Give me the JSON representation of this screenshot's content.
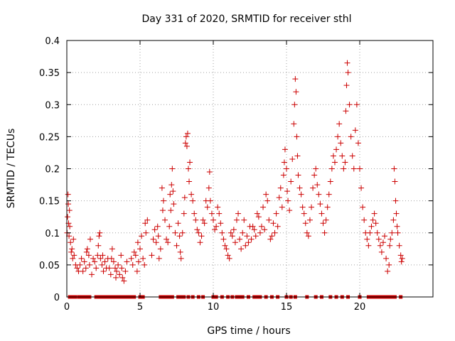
{
  "chart_data": {
    "type": "scatter",
    "title": "Day 331 of 2020, SRMTID for receiver sthl",
    "xlabel": "GPS time / hours",
    "ylabel": "SRMTID / TECUs",
    "xlim": [
      0,
      25
    ],
    "ylim": [
      0,
      0.4
    ],
    "x_ticks": [
      0,
      5,
      10,
      15,
      20
    ],
    "x_tick_labels": [
      "0",
      "5",
      "10",
      "15",
      "20"
    ],
    "y_ticks": [
      0,
      0.05,
      0.1,
      0.15,
      0.2,
      0.25,
      0.3,
      0.35,
      0.4
    ],
    "y_tick_labels": [
      "0",
      "0.05",
      "0.1",
      "0.15",
      "0.2",
      "0.25",
      "0.3",
      "0.35",
      "0.4"
    ],
    "grid": true,
    "marker": "plus",
    "series_color": "#cc0000",
    "zero_marker": "square",
    "zero_x": [
      0.2,
      0.4,
      0.6,
      0.85,
      1.0,
      1.2,
      1.35,
      1.55,
      2.0,
      2.2,
      2.4,
      2.6,
      2.8,
      3.0,
      3.2,
      3.4,
      3.6,
      3.8,
      4.0,
      4.2,
      4.4,
      4.6,
      5.0,
      5.2,
      6.4,
      6.6,
      6.8,
      7.0,
      7.2,
      7.6,
      7.8,
      8.0,
      8.3,
      8.6,
      9.0,
      9.3,
      10.0,
      10.2,
      10.6,
      11.0,
      11.3,
      11.6,
      11.8,
      12.0,
      12.4,
      12.8,
      13.0,
      13.2,
      13.6,
      14.0,
      14.4,
      15.0,
      15.3,
      15.6,
      16.4,
      17.0,
      17.4,
      18.0,
      18.4,
      18.8,
      19.2,
      20.0,
      20.6,
      20.8,
      21.0,
      21.2,
      21.4,
      21.6,
      21.8,
      22.0,
      22.2,
      22.4,
      22.8
    ],
    "points": [
      [
        0.02,
        0.1
      ],
      [
        0.05,
        0.125
      ],
      [
        0.08,
        0.16
      ],
      [
        0.1,
        0.145
      ],
      [
        0.12,
        0.115
      ],
      [
        0.15,
        0.095
      ],
      [
        0.18,
        0.135
      ],
      [
        0.2,
        0.11
      ],
      [
        0.25,
        0.085
      ],
      [
        0.3,
        0.07
      ],
      [
        0.35,
        0.075
      ],
      [
        0.4,
        0.06
      ],
      [
        0.45,
        0.09
      ],
      [
        0.5,
        0.065
      ],
      [
        0.6,
        0.05
      ],
      [
        0.7,
        0.045
      ],
      [
        0.8,
        0.04
      ],
      [
        0.9,
        0.05
      ],
      [
        1.0,
        0.06
      ],
      [
        1.1,
        0.04
      ],
      [
        1.2,
        0.055
      ],
      [
        1.3,
        0.045
      ],
      [
        1.35,
        0.07
      ],
      [
        1.4,
        0.075
      ],
      [
        1.5,
        0.065
      ],
      [
        1.55,
        0.05
      ],
      [
        1.6,
        0.09
      ],
      [
        1.7,
        0.035
      ],
      [
        1.8,
        0.06
      ],
      [
        1.9,
        0.055
      ],
      [
        2.0,
        0.045
      ],
      [
        2.1,
        0.065
      ],
      [
        2.15,
        0.08
      ],
      [
        2.2,
        0.095
      ],
      [
        2.25,
        0.1
      ],
      [
        2.3,
        0.06
      ],
      [
        2.4,
        0.05
      ],
      [
        2.45,
        0.065
      ],
      [
        2.5,
        0.04
      ],
      [
        2.6,
        0.055
      ],
      [
        2.7,
        0.045
      ],
      [
        2.8,
        0.06
      ],
      [
        2.9,
        0.045
      ],
      [
        3.0,
        0.035
      ],
      [
        3.05,
        0.06
      ],
      [
        3.1,
        0.075
      ],
      [
        3.2,
        0.055
      ],
      [
        3.3,
        0.045
      ],
      [
        3.35,
        0.03
      ],
      [
        3.4,
        0.04
      ],
      [
        3.5,
        0.05
      ],
      [
        3.6,
        0.035
      ],
      [
        3.7,
        0.065
      ],
      [
        3.75,
        0.045
      ],
      [
        3.8,
        0.03
      ],
      [
        3.9,
        0.025
      ],
      [
        4.0,
        0.04
      ],
      [
        4.1,
        0.055
      ],
      [
        4.4,
        0.06
      ],
      [
        4.5,
        0.05
      ],
      [
        4.6,
        0.07
      ],
      [
        4.7,
        0.065
      ],
      [
        4.8,
        0.04
      ],
      [
        4.85,
        0.085
      ],
      [
        4.9,
        0.055
      ],
      [
        5.0,
        0.075
      ],
      [
        5.1,
        0.095
      ],
      [
        5.2,
        0.06
      ],
      [
        5.3,
        0.05
      ],
      [
        5.35,
        0.115
      ],
      [
        5.4,
        0.1
      ],
      [
        5.5,
        0.12
      ],
      [
        5.8,
        0.065
      ],
      [
        5.9,
        0.09
      ],
      [
        6.0,
        0.105
      ],
      [
        6.1,
        0.085
      ],
      [
        6.2,
        0.11
      ],
      [
        6.25,
        0.095
      ],
      [
        6.3,
        0.06
      ],
      [
        6.4,
        0.075
      ],
      [
        6.5,
        0.17
      ],
      [
        6.55,
        0.135
      ],
      [
        6.6,
        0.15
      ],
      [
        6.7,
        0.12
      ],
      [
        6.8,
        0.09
      ],
      [
        6.9,
        0.085
      ],
      [
        7.0,
        0.11
      ],
      [
        7.05,
        0.16
      ],
      [
        7.1,
        0.135
      ],
      [
        7.15,
        0.175
      ],
      [
        7.2,
        0.2
      ],
      [
        7.25,
        0.165
      ],
      [
        7.3,
        0.145
      ],
      [
        7.4,
        0.1
      ],
      [
        7.5,
        0.08
      ],
      [
        7.6,
        0.115
      ],
      [
        7.7,
        0.095
      ],
      [
        7.75,
        0.07
      ],
      [
        7.8,
        0.06
      ],
      [
        7.9,
        0.1
      ],
      [
        8.0,
        0.13
      ],
      [
        8.05,
        0.155
      ],
      [
        8.1,
        0.24
      ],
      [
        8.15,
        0.25
      ],
      [
        8.2,
        0.235
      ],
      [
        8.25,
        0.255
      ],
      [
        8.3,
        0.2
      ],
      [
        8.35,
        0.18
      ],
      [
        8.4,
        0.21
      ],
      [
        8.5,
        0.16
      ],
      [
        8.6,
        0.15
      ],
      [
        8.7,
        0.13
      ],
      [
        8.8,
        0.12
      ],
      [
        8.9,
        0.105
      ],
      [
        9.0,
        0.1
      ],
      [
        9.1,
        0.085
      ],
      [
        9.2,
        0.095
      ],
      [
        9.3,
        0.12
      ],
      [
        9.4,
        0.115
      ],
      [
        9.5,
        0.15
      ],
      [
        9.6,
        0.14
      ],
      [
        9.7,
        0.17
      ],
      [
        9.75,
        0.195
      ],
      [
        9.8,
        0.15
      ],
      [
        9.9,
        0.13
      ],
      [
        10.0,
        0.12
      ],
      [
        10.1,
        0.105
      ],
      [
        10.2,
        0.11
      ],
      [
        10.3,
        0.14
      ],
      [
        10.4,
        0.13
      ],
      [
        10.5,
        0.115
      ],
      [
        10.6,
        0.1
      ],
      [
        10.7,
        0.09
      ],
      [
        10.8,
        0.08
      ],
      [
        10.9,
        0.075
      ],
      [
        11.0,
        0.065
      ],
      [
        11.1,
        0.06
      ],
      [
        11.2,
        0.1
      ],
      [
        11.3,
        0.095
      ],
      [
        11.4,
        0.105
      ],
      [
        11.5,
        0.085
      ],
      [
        11.6,
        0.12
      ],
      [
        11.7,
        0.13
      ],
      [
        11.8,
        0.09
      ],
      [
        11.9,
        0.075
      ],
      [
        12.0,
        0.1
      ],
      [
        12.1,
        0.12
      ],
      [
        12.2,
        0.08
      ],
      [
        12.3,
        0.095
      ],
      [
        12.4,
        0.085
      ],
      [
        12.5,
        0.11
      ],
      [
        12.6,
        0.09
      ],
      [
        12.7,
        0.11
      ],
      [
        12.8,
        0.105
      ],
      [
        12.9,
        0.095
      ],
      [
        13.0,
        0.13
      ],
      [
        13.1,
        0.125
      ],
      [
        13.2,
        0.1
      ],
      [
        13.3,
        0.11
      ],
      [
        13.4,
        0.14
      ],
      [
        13.5,
        0.105
      ],
      [
        13.6,
        0.16
      ],
      [
        13.7,
        0.15
      ],
      [
        13.8,
        0.12
      ],
      [
        13.9,
        0.09
      ],
      [
        14.0,
        0.095
      ],
      [
        14.1,
        0.115
      ],
      [
        14.2,
        0.1
      ],
      [
        14.3,
        0.13
      ],
      [
        14.4,
        0.11
      ],
      [
        14.5,
        0.155
      ],
      [
        14.6,
        0.17
      ],
      [
        14.7,
        0.14
      ],
      [
        14.8,
        0.19
      ],
      [
        14.85,
        0.21
      ],
      [
        14.9,
        0.23
      ],
      [
        15.0,
        0.2
      ],
      [
        15.05,
        0.165
      ],
      [
        15.1,
        0.15
      ],
      [
        15.2,
        0.135
      ],
      [
        15.3,
        0.18
      ],
      [
        15.4,
        0.215
      ],
      [
        15.5,
        0.27
      ],
      [
        15.55,
        0.3
      ],
      [
        15.6,
        0.34
      ],
      [
        15.65,
        0.32
      ],
      [
        15.7,
        0.25
      ],
      [
        15.75,
        0.22
      ],
      [
        15.8,
        0.19
      ],
      [
        15.9,
        0.17
      ],
      [
        16.0,
        0.16
      ],
      [
        16.1,
        0.14
      ],
      [
        16.2,
        0.13
      ],
      [
        16.3,
        0.115
      ],
      [
        16.4,
        0.1
      ],
      [
        16.5,
        0.095
      ],
      [
        16.6,
        0.12
      ],
      [
        16.7,
        0.14
      ],
      [
        16.8,
        0.17
      ],
      [
        16.9,
        0.19
      ],
      [
        17.0,
        0.2
      ],
      [
        17.1,
        0.175
      ],
      [
        17.2,
        0.16
      ],
      [
        17.3,
        0.145
      ],
      [
        17.4,
        0.13
      ],
      [
        17.5,
        0.115
      ],
      [
        17.6,
        0.1
      ],
      [
        17.7,
        0.12
      ],
      [
        17.8,
        0.14
      ],
      [
        17.9,
        0.16
      ],
      [
        18.0,
        0.18
      ],
      [
        18.1,
        0.2
      ],
      [
        18.2,
        0.22
      ],
      [
        18.3,
        0.21
      ],
      [
        18.4,
        0.23
      ],
      [
        18.5,
        0.25
      ],
      [
        18.6,
        0.27
      ],
      [
        18.7,
        0.24
      ],
      [
        18.8,
        0.22
      ],
      [
        18.9,
        0.2
      ],
      [
        19.0,
        0.21
      ],
      [
        19.05,
        0.29
      ],
      [
        19.1,
        0.33
      ],
      [
        19.15,
        0.365
      ],
      [
        19.2,
        0.35
      ],
      [
        19.3,
        0.3
      ],
      [
        19.4,
        0.25
      ],
      [
        19.5,
        0.22
      ],
      [
        19.6,
        0.2
      ],
      [
        19.7,
        0.26
      ],
      [
        19.8,
        0.3
      ],
      [
        19.9,
        0.24
      ],
      [
        20.0,
        0.2
      ],
      [
        20.1,
        0.17
      ],
      [
        20.2,
        0.14
      ],
      [
        20.3,
        0.12
      ],
      [
        20.4,
        0.1
      ],
      [
        20.5,
        0.09
      ],
      [
        20.6,
        0.08
      ],
      [
        20.7,
        0.1
      ],
      [
        20.8,
        0.11
      ],
      [
        20.9,
        0.12
      ],
      [
        21.0,
        0.13
      ],
      [
        21.1,
        0.115
      ],
      [
        21.2,
        0.1
      ],
      [
        21.3,
        0.09
      ],
      [
        21.4,
        0.08
      ],
      [
        21.5,
        0.07
      ],
      [
        21.6,
        0.085
      ],
      [
        21.7,
        0.095
      ],
      [
        21.8,
        0.06
      ],
      [
        21.9,
        0.04
      ],
      [
        22.0,
        0.05
      ],
      [
        22.05,
        0.08
      ],
      [
        22.1,
        0.09
      ],
      [
        22.2,
        0.1
      ],
      [
        22.3,
        0.12
      ],
      [
        22.35,
        0.2
      ],
      [
        22.4,
        0.18
      ],
      [
        22.45,
        0.15
      ],
      [
        22.5,
        0.13
      ],
      [
        22.55,
        0.11
      ],
      [
        22.6,
        0.1
      ],
      [
        22.7,
        0.08
      ],
      [
        22.8,
        0.065
      ],
      [
        22.85,
        0.055
      ],
      [
        22.9,
        0.06
      ]
    ]
  }
}
